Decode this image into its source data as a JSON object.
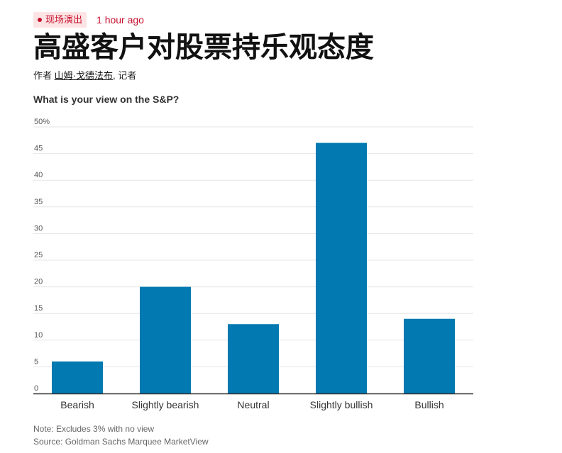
{
  "live_label": "现场演出",
  "timestamp": "1 hour ago",
  "headline": "高盛客户对股票持乐观态度",
  "byline": {
    "prefix": "作者",
    "author": "山姆·戈德法布",
    "suffix": ", 记者"
  },
  "colors": {
    "accent_red": "#c8102e",
    "live_bg": "#fde4e4",
    "bar": "#0279b0",
    "grid": "#e6e6e6",
    "axis": "#333333"
  },
  "chart_data": {
    "type": "bar",
    "title": "What is your view on the S&P?",
    "categories": [
      "Bearish",
      "Slightly bearish",
      "Neutral",
      "Slightly bullish",
      "Bullish"
    ],
    "values": [
      6,
      20,
      13,
      47,
      14
    ],
    "ylim": [
      0,
      50
    ],
    "yticks": [
      0,
      5,
      10,
      15,
      20,
      25,
      30,
      35,
      40,
      45,
      50
    ],
    "ytick_labels": [
      "0",
      "5",
      "10",
      "15",
      "20",
      "25",
      "30",
      "35",
      "40",
      "45",
      "50%"
    ],
    "xlabel": "",
    "ylabel": "",
    "grid": true
  },
  "note": "Note: Excludes 3% with no view",
  "source": "Source: Goldman Sachs Marquee MarketView"
}
